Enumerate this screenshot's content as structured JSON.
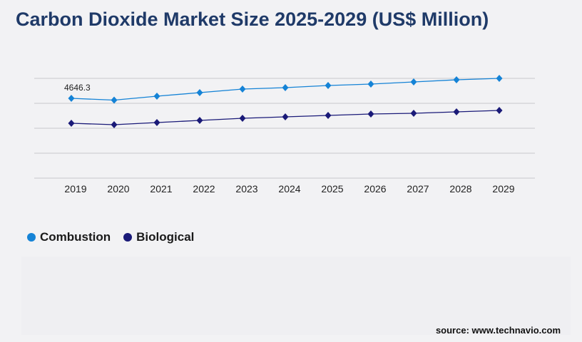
{
  "title": "Carbon Dioxide Market Size 2025-2029 (US$ Million)",
  "source": "source: www.technavio.com",
  "chart_data": {
    "type": "line",
    "title": "Carbon Dioxide Market Size 2025-2029 (US$ Million)",
    "categories": [
      "2019",
      "2020",
      "2021",
      "2022",
      "2023",
      "2024",
      "2025",
      "2026",
      "2027",
      "2028",
      "2029"
    ],
    "series": [
      {
        "name": "Combustion",
        "color": "#1583d6",
        "values": [
          4646.3,
          4543,
          4771,
          4978,
          5186,
          5269,
          5393,
          5476,
          5600,
          5725,
          5808
        ]
      },
      {
        "name": "Biological",
        "color": "#1a1a78",
        "values": [
          3194,
          3111,
          3236,
          3360,
          3485,
          3568,
          3651,
          3734,
          3775,
          3858,
          3941
        ]
      }
    ],
    "annotations": [
      {
        "series": "Combustion",
        "category": "2019",
        "label": "4646.3"
      }
    ],
    "ylim": [
      0,
      5808
    ],
    "y_tick_labels_shown": false,
    "grid": true,
    "legend_position": "bottom-left"
  }
}
